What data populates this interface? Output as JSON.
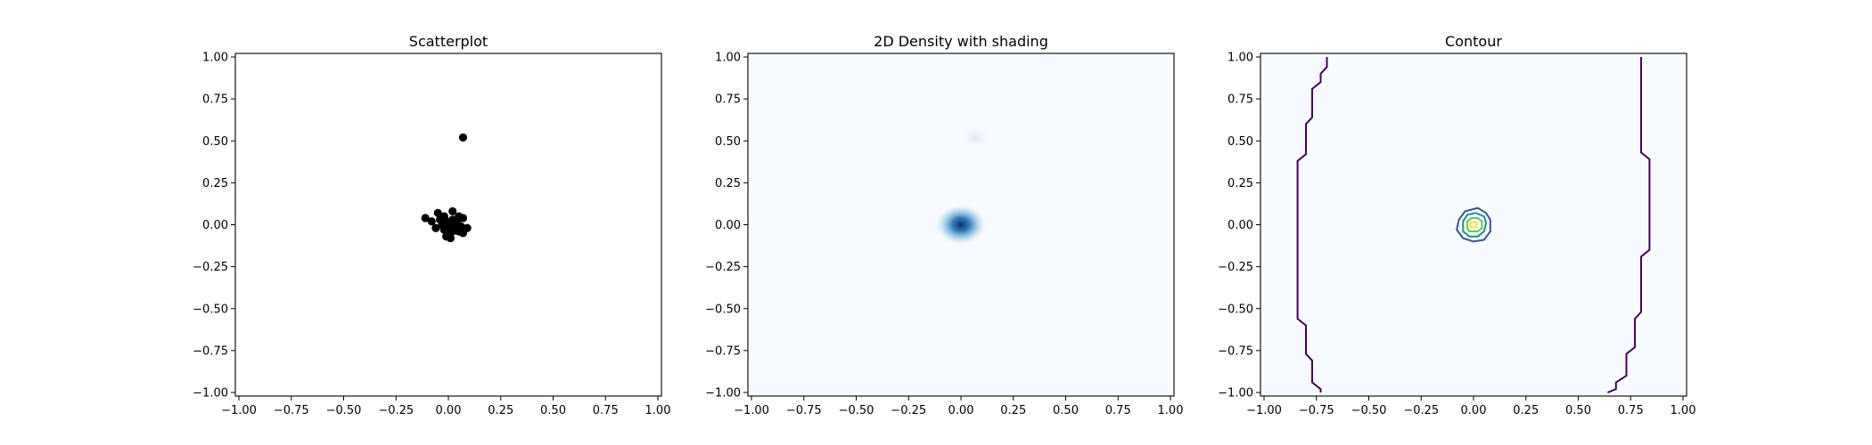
{
  "chart_data": [
    {
      "type": "scatter",
      "title": "Scatterplot",
      "xlim": [
        -1.0,
        1.0
      ],
      "ylim": [
        -1.0,
        1.0
      ],
      "xticks": [
        "−1.00",
        "−0.75",
        "−0.50",
        "−0.25",
        "0.00",
        "0.25",
        "0.50",
        "0.75",
        "1.00"
      ],
      "yticks": [
        "−1.00",
        "−0.75",
        "−0.50",
        "−0.25",
        "0.00",
        "0.25",
        "0.50",
        "0.75",
        "1.00"
      ],
      "point_color": "#000000",
      "grid": false,
      "points": [
        {
          "x": 0.07,
          "y": 0.52
        },
        {
          "x": -0.11,
          "y": 0.04
        },
        {
          "x": -0.08,
          "y": 0.02
        },
        {
          "x": -0.05,
          "y": 0.07
        },
        {
          "x": -0.03,
          "y": 0.04
        },
        {
          "x": 0.02,
          "y": 0.08
        },
        {
          "x": 0.05,
          "y": 0.05
        },
        {
          "x": 0.07,
          "y": 0.04
        },
        {
          "x": -0.06,
          "y": -0.02
        },
        {
          "x": -0.03,
          "y": 0.0
        },
        {
          "x": -0.01,
          "y": 0.02
        },
        {
          "x": 0.0,
          "y": 0.01
        },
        {
          "x": 0.01,
          "y": -0.01
        },
        {
          "x": 0.03,
          "y": 0.01
        },
        {
          "x": 0.04,
          "y": -0.02
        },
        {
          "x": -0.02,
          "y": -0.03
        },
        {
          "x": 0.0,
          "y": -0.05
        },
        {
          "x": 0.02,
          "y": -0.04
        },
        {
          "x": 0.06,
          "y": -0.01
        },
        {
          "x": 0.09,
          "y": -0.02
        },
        {
          "x": 0.07,
          "y": -0.05
        },
        {
          "x": -0.01,
          "y": -0.07
        },
        {
          "x": 0.01,
          "y": -0.08
        },
        {
          "x": -0.04,
          "y": 0.03
        },
        {
          "x": 0.04,
          "y": 0.02
        },
        {
          "x": 0.05,
          "y": -0.04
        },
        {
          "x": -0.02,
          "y": 0.05
        },
        {
          "x": 0.02,
          "y": 0.03
        }
      ]
    },
    {
      "type": "heatmap",
      "title": "2D Density with shading",
      "xlim": [
        -1.0,
        1.0
      ],
      "ylim": [
        -1.0,
        1.0
      ],
      "xticks": [
        "−1.00",
        "−0.75",
        "−0.50",
        "−0.25",
        "0.00",
        "0.25",
        "0.50",
        "0.75",
        "1.00"
      ],
      "yticks": [
        "−1.00",
        "−0.75",
        "−0.50",
        "−0.25",
        "0.00",
        "0.25",
        "0.50",
        "0.75",
        "1.00"
      ],
      "colormap": "Blues",
      "background_color": "#f7fbff",
      "peak_color": "#08306b",
      "density_peaks": [
        {
          "x": 0.0,
          "y": 0.0,
          "spread": 0.05,
          "weight": 1.0
        },
        {
          "x": 0.07,
          "y": 0.52,
          "spread": 0.03,
          "weight": 0.06
        }
      ]
    },
    {
      "type": "contour",
      "title": "Contour",
      "xlim": [
        -1.0,
        1.0
      ],
      "ylim": [
        -1.0,
        1.0
      ],
      "xticks": [
        "−1.00",
        "−0.75",
        "−0.50",
        "−0.25",
        "0.00",
        "0.25",
        "0.50",
        "0.75",
        "1.00"
      ],
      "yticks": [
        "−1.00",
        "−0.75",
        "−0.50",
        "−0.25",
        "0.00",
        "0.25",
        "0.50",
        "0.75",
        "1.00"
      ],
      "colormap": "viridis",
      "background_color": "#f7fbff",
      "contours": [
        {
          "level": "lowest",
          "color": "#440154",
          "closed": false,
          "path": [
            [
              -0.7,
              1.0
            ],
            [
              -0.7,
              0.94
            ],
            [
              -0.73,
              0.9
            ],
            [
              -0.73,
              0.85
            ],
            [
              -0.77,
              0.81
            ],
            [
              -0.77,
              0.64
            ],
            [
              -0.8,
              0.6
            ],
            [
              -0.8,
              0.42
            ],
            [
              -0.84,
              0.38
            ],
            [
              -0.84,
              -0.56
            ],
            [
              -0.8,
              -0.6
            ],
            [
              -0.8,
              -0.77
            ],
            [
              -0.77,
              -0.81
            ],
            [
              -0.77,
              -0.94
            ],
            [
              -0.73,
              -0.98
            ],
            [
              -0.73,
              -1.0
            ]
          ]
        },
        {
          "level": "lowest",
          "color": "#440154",
          "closed": false,
          "path": [
            [
              0.8,
              1.0
            ],
            [
              0.8,
              0.43
            ],
            [
              0.84,
              0.39
            ],
            [
              0.84,
              -0.15
            ],
            [
              0.8,
              -0.19
            ],
            [
              0.8,
              -0.52
            ],
            [
              0.77,
              -0.56
            ],
            [
              0.77,
              -0.73
            ],
            [
              0.73,
              -0.77
            ],
            [
              0.73,
              -0.9
            ],
            [
              0.68,
              -0.94
            ],
            [
              0.68,
              -0.98
            ],
            [
              0.64,
              -1.0
            ]
          ]
        },
        {
          "level": "low",
          "color": "#3b528b",
          "closed": true,
          "path": [
            [
              -0.07,
              0.03
            ],
            [
              -0.04,
              0.08
            ],
            [
              0.02,
              0.1
            ],
            [
              0.06,
              0.07
            ],
            [
              0.08,
              0.03
            ],
            [
              0.08,
              -0.04
            ],
            [
              0.05,
              -0.09
            ],
            [
              0.0,
              -0.1
            ],
            [
              -0.05,
              -0.08
            ],
            [
              -0.08,
              -0.03
            ]
          ]
        },
        {
          "level": "mid",
          "color": "#21918c",
          "closed": true,
          "path": [
            [
              -0.05,
              0.02
            ],
            [
              -0.03,
              0.06
            ],
            [
              0.01,
              0.07
            ],
            [
              0.05,
              0.05
            ],
            [
              0.06,
              0.01
            ],
            [
              0.05,
              -0.04
            ],
            [
              0.02,
              -0.07
            ],
            [
              -0.02,
              -0.07
            ],
            [
              -0.05,
              -0.04
            ]
          ]
        },
        {
          "level": "high",
          "color": "#5ec962",
          "closed": true,
          "path": [
            [
              -0.03,
              0.02
            ],
            [
              -0.01,
              0.04
            ],
            [
              0.02,
              0.04
            ],
            [
              0.04,
              0.02
            ],
            [
              0.04,
              -0.02
            ],
            [
              0.02,
              -0.04
            ],
            [
              -0.02,
              -0.04
            ],
            [
              -0.03,
              -0.02
            ]
          ]
        },
        {
          "level": "top",
          "color": "#fde725",
          "closed": true,
          "path": [
            [
              -0.015,
              0.015
            ],
            [
              0.015,
              0.015
            ],
            [
              0.015,
              -0.015
            ],
            [
              -0.015,
              -0.015
            ]
          ]
        }
      ]
    }
  ]
}
